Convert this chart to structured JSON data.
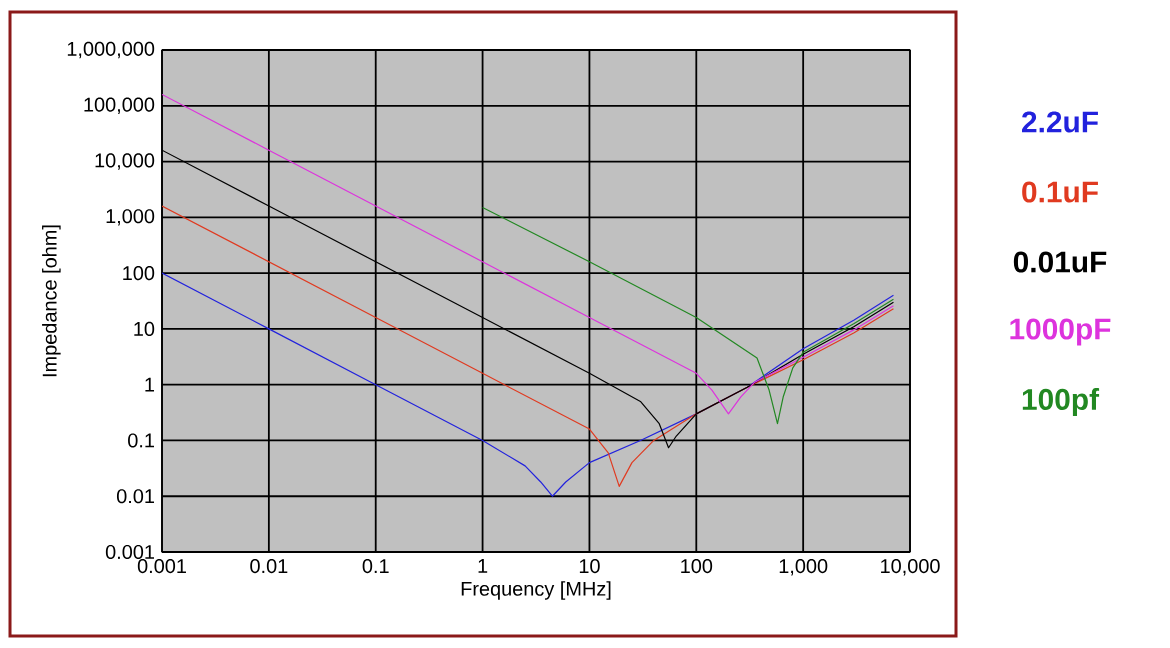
{
  "chart_data": {
    "type": "line",
    "xlabel": "Frequency [MHz]",
    "ylabel": "Impedance [ohm]",
    "log": "xy",
    "grid": true,
    "legend": "right",
    "marker": "none",
    "line_style": "solid",
    "xlim": [
      0.001,
      10000
    ],
    "ylim": [
      0.001,
      1000000
    ],
    "xticks": [
      0.001,
      0.01,
      0.1,
      1,
      10,
      100,
      {
        "value": 1000,
        "label": "1,000"
      },
      {
        "value": 10000,
        "label": "10,000"
      }
    ],
    "yticks": [
      0.001,
      0.01,
      0.1,
      1,
      10,
      100,
      {
        "value": 1000,
        "label": "1,000"
      },
      {
        "value": 10000,
        "label": "10,000"
      },
      {
        "value": 100000,
        "label": "100,000"
      },
      {
        "value": 1000000,
        "label": "1,000,000"
      }
    ],
    "series": [
      {
        "name": "2.2uF",
        "color": "#2222dd",
        "x": [
          0.001,
          0.01,
          0.1,
          1,
          2.5,
          3.5,
          4.5,
          6,
          10,
          30,
          100,
          300,
          1000,
          3000,
          7000
        ],
        "values": [
          100,
          10,
          1,
          0.1,
          0.035,
          0.018,
          0.01,
          0.018,
          0.04,
          0.1,
          0.3,
          0.9,
          4.4,
          14.5,
          40
        ]
      },
      {
        "name": "0.1uF",
        "color": "#e03a20",
        "x": [
          0.001,
          0.01,
          0.1,
          1,
          10,
          15,
          19,
          25,
          40,
          100,
          300,
          1000,
          3000,
          7000
        ],
        "values": [
          1600,
          160,
          16,
          1.6,
          0.16,
          0.06,
          0.015,
          0.04,
          0.1,
          0.3,
          0.9,
          2.8,
          8.5,
          23
        ]
      },
      {
        "name": "0.01uF",
        "color": "#000000",
        "x": [
          0.001,
          0.01,
          0.1,
          1,
          10,
          30,
          45,
          55,
          65,
          100,
          300,
          1000,
          3000,
          7000
        ],
        "values": [
          16000,
          1600,
          160,
          16,
          1.6,
          0.5,
          0.2,
          0.074,
          0.12,
          0.3,
          0.9,
          3.5,
          11,
          30
        ]
      },
      {
        "name": "1000pF",
        "color": "#dd33dd",
        "x": [
          0.001,
          0.01,
          0.1,
          1,
          10,
          100,
          140,
          200,
          260,
          350,
          1000,
          3000,
          7000
        ],
        "values": [
          160000,
          16000,
          1600,
          160,
          16,
          1.6,
          0.8,
          0.3,
          0.6,
          1.1,
          3.1,
          9.7,
          26
        ]
      },
      {
        "name": "100pf",
        "color": "#228822",
        "x": [
          1,
          10,
          100,
          370,
          480,
          575,
          650,
          800,
          1000,
          3000,
          7000
        ],
        "values": [
          1500,
          160,
          16,
          3,
          0.8,
          0.2,
          0.6,
          2,
          3.8,
          12.5,
          34
        ]
      }
    ]
  }
}
